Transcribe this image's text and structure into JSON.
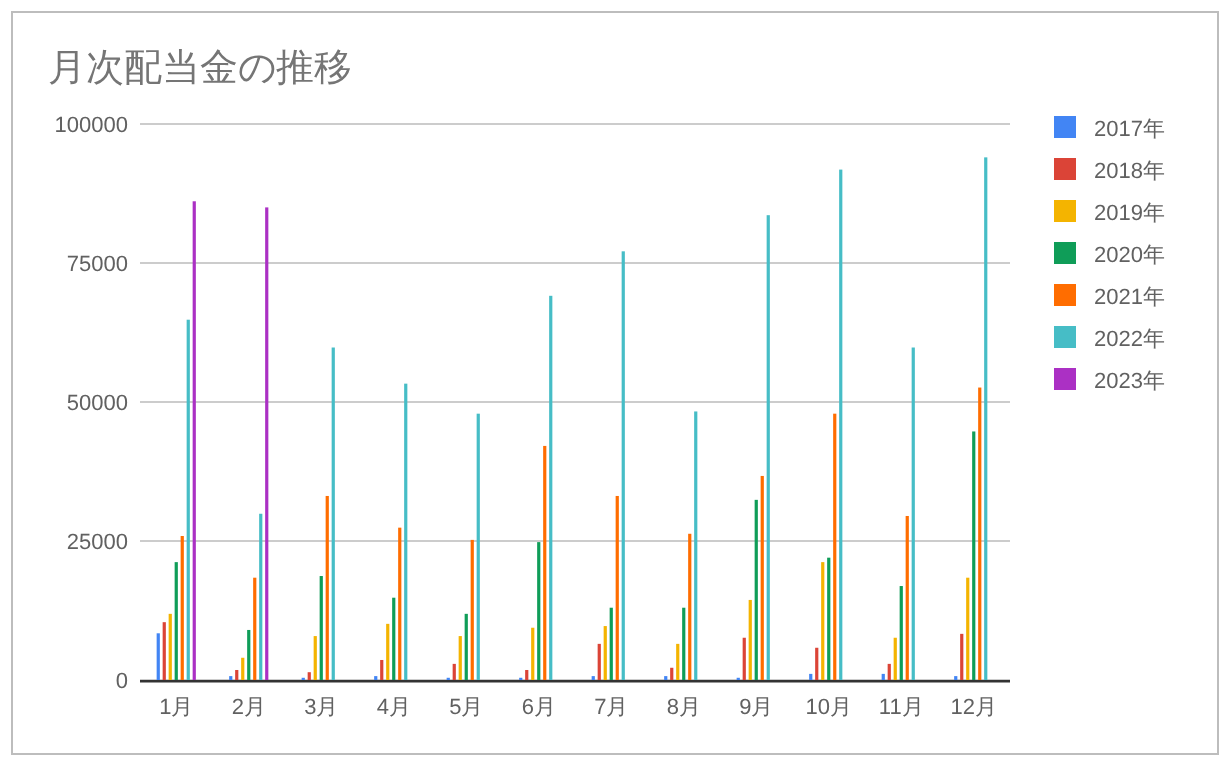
{
  "chart_data": {
    "type": "bar",
    "title": "月次配当金の推移",
    "categories": [
      "1月",
      "2月",
      "3月",
      "4月",
      "5月",
      "6月",
      "7月",
      "8月",
      "9月",
      "10月",
      "11月",
      "12月"
    ],
    "series": [
      {
        "name": "2017年",
        "color": "#4285f4",
        "values": [
          8400,
          700,
          400,
          700,
          400,
          400,
          700,
          700,
          400,
          1100,
          1100,
          700
        ]
      },
      {
        "name": "2018年",
        "color": "#db4437",
        "values": [
          10400,
          1800,
          1400,
          3600,
          2900,
          1800,
          6500,
          2200,
          7600,
          5800,
          2900,
          8300
        ]
      },
      {
        "name": "2019年",
        "color": "#f4b400",
        "values": [
          11900,
          4000,
          7900,
          10100,
          7900,
          9400,
          9700,
          6500,
          14400,
          21200,
          7600,
          18400
        ]
      },
      {
        "name": "2020年",
        "color": "#0f9d58",
        "values": [
          21200,
          9000,
          18700,
          14800,
          11900,
          24800,
          13000,
          13000,
          32400,
          22000,
          16900,
          44700
        ]
      },
      {
        "name": "2021年",
        "color": "#ff6d00",
        "values": [
          25900,
          18400,
          33100,
          27400,
          25200,
          42100,
          33100,
          26300,
          36700,
          47900,
          29500,
          52600
        ]
      },
      {
        "name": "2022年",
        "color": "#46bdc6",
        "values": [
          64800,
          29900,
          59800,
          53300,
          47900,
          69100,
          77100,
          48300,
          83600,
          91800,
          59800,
          94000
        ]
      },
      {
        "name": "2023年",
        "color": "#ab30c4",
        "values": [
          86100,
          85000,
          null,
          null,
          null,
          null,
          null,
          null,
          null,
          null,
          null,
          null
        ]
      }
    ],
    "ylim": [
      0,
      100000
    ],
    "yticks": [
      0,
      25000,
      50000,
      75000,
      100000
    ],
    "grid": "y",
    "legend": "right"
  }
}
